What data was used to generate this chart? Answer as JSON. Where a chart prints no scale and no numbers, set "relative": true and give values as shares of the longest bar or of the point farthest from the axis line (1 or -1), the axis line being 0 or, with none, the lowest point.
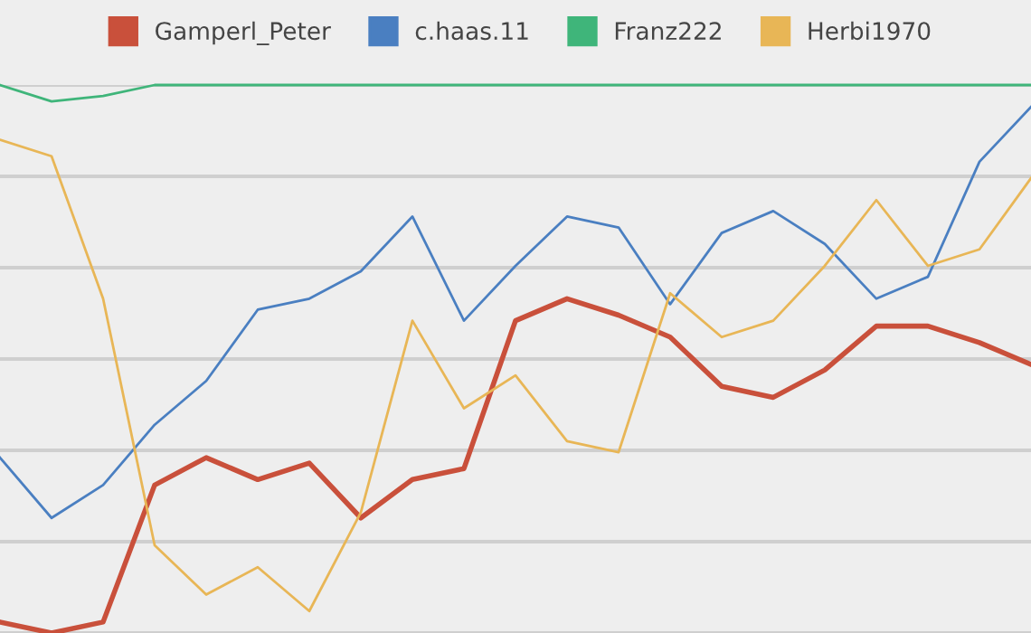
{
  "chart_data": {
    "type": "line",
    "relative": true,
    "grid": "y",
    "legend": "top",
    "marker": "none",
    "line_style": "solid",
    "categories": [
      null,
      null,
      null,
      null,
      null,
      null,
      null,
      null,
      null,
      null,
      null,
      null,
      null,
      null,
      null,
      null,
      null,
      null,
      null,
      null,
      null
    ],
    "series": [
      {
        "name": "Gamperl_Peter",
        "color": "#c9503b",
        "values": [
          0.02,
          0,
          0.02,
          0.27,
          0.32,
          0.28,
          0.31,
          0.21,
          0.28,
          0.3,
          0.57,
          0.61,
          0.58,
          0.54,
          0.45,
          0.43,
          0.48,
          0.56,
          0.56,
          0.53,
          0.49
        ]
      },
      {
        "name": "c.haas.11",
        "color": "#4a7fc1",
        "values": [
          0.32,
          0.21,
          0.27,
          0.38,
          0.46,
          0.59,
          0.61,
          0.66,
          0.76,
          0.57,
          0.67,
          0.76,
          0.74,
          0.6,
          0.73,
          0.77,
          0.71,
          0.61,
          0.65,
          0.86,
          0.96
        ]
      },
      {
        "name": "Franz222",
        "color": "#3fb57a",
        "values": [
          1.0,
          0.97,
          0.98,
          1.0,
          1.0,
          1.0,
          1.0,
          1.0,
          1.0,
          1.0,
          1.0,
          1.0,
          1.0,
          1.0,
          1.0,
          1.0,
          1.0,
          1.0,
          1.0,
          1.0,
          1.0
        ]
      },
      {
        "name": "Herbi1970",
        "color": "#e8b656",
        "values": [
          0.9,
          0.87,
          0.61,
          0.16,
          0.07,
          0.12,
          0.04,
          0.22,
          0.57,
          0.41,
          0.47,
          0.35,
          0.33,
          0.62,
          0.54,
          0.57,
          0.67,
          0.79,
          0.67,
          0.7,
          0.83
        ]
      }
    ]
  }
}
